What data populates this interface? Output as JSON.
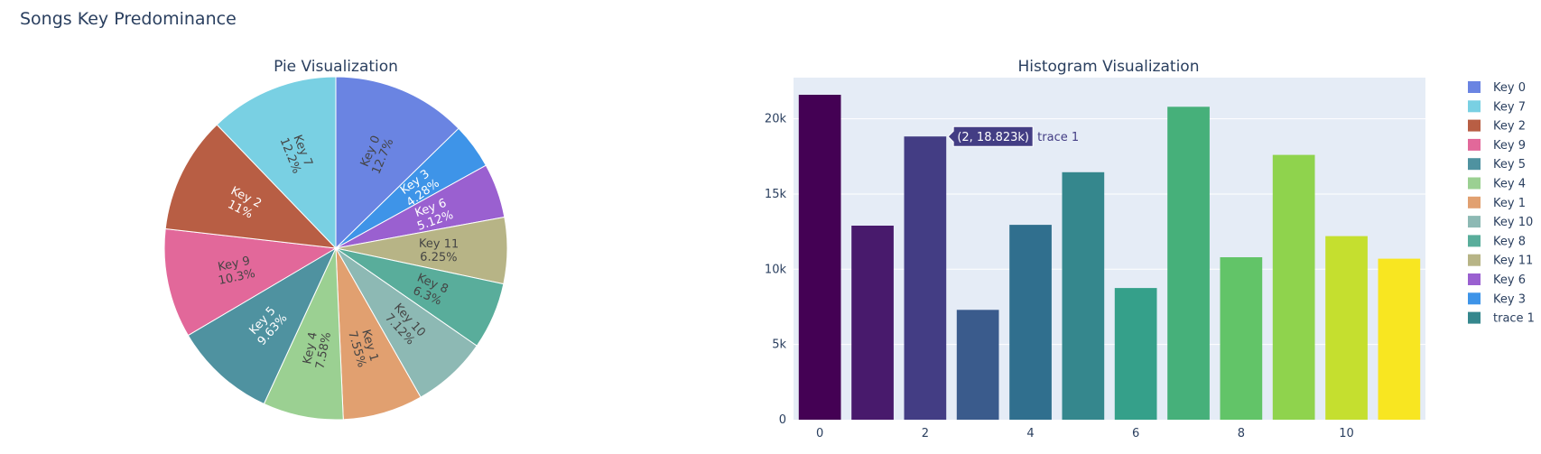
{
  "title": "Songs Key Predominance",
  "chart_data": [
    {
      "type": "pie",
      "title": "Pie Visualization",
      "labels": [
        "Key 0",
        "Key 3",
        "Key 6",
        "Key 11",
        "Key 8",
        "Key 10",
        "Key 1",
        "Key 4",
        "Key 5",
        "Key 9",
        "Key 2",
        "Key 7"
      ],
      "values": [
        12.7,
        4.28,
        5.12,
        6.25,
        6.3,
        7.12,
        7.55,
        7.58,
        9.63,
        10.3,
        11,
        12.2
      ],
      "percent_labels": [
        "12.7%",
        "4.28%",
        "5.12%",
        "6.25%",
        "6.3%",
        "7.12%",
        "7.55%",
        "7.58%",
        "9.63%",
        "10.3%",
        "11%",
        "12.2%"
      ],
      "colors": [
        "#6a84e2",
        "#3e94e8",
        "#9a60d0",
        "#b7b486",
        "#59ad9b",
        "#8db9b4",
        "#e1a070",
        "#9bd092",
        "#4f92a0",
        "#e2689a",
        "#b85e44",
        "#79d0e3"
      ],
      "text_colors": [
        "#444444",
        "#ffffff",
        "#ffffff",
        "#444444",
        "#444444",
        "#444444",
        "#444444",
        "#444444",
        "#ffffff",
        "#444444",
        "#ffffff",
        "#444444"
      ],
      "direction": "clockwise",
      "start": "top"
    },
    {
      "type": "bar",
      "title": "Histogram Visualization",
      "x": [
        0,
        1,
        2,
        3,
        4,
        5,
        6,
        7,
        8,
        9,
        10,
        11
      ],
      "values": [
        21600,
        12900,
        18823,
        7300,
        12950,
        16450,
        8750,
        20800,
        10800,
        17600,
        12200,
        10700
      ],
      "colors": [
        "#440154",
        "#481a6c",
        "#433d84",
        "#3a5b8c",
        "#306f8e",
        "#35878d",
        "#35a08a",
        "#46b07a",
        "#62c468",
        "#8fd34d",
        "#c5df2f",
        "#f8e621"
      ],
      "x_ticks": [
        0,
        2,
        4,
        6,
        8,
        10
      ],
      "y_ticks": [
        0,
        5000,
        10000,
        15000,
        20000
      ],
      "y_tick_labels": [
        "0",
        "5k",
        "10k",
        "15k",
        "20k"
      ],
      "ylim": [
        0,
        22737
      ],
      "xlim": [
        -0.5,
        11.5
      ],
      "grid": true,
      "hover": {
        "index": 2,
        "label": "(2, 18.823k)",
        "name": "trace 1",
        "color": "#433d84"
      }
    }
  ],
  "legend": {
    "placement": "right",
    "items": [
      {
        "label": "Key 0",
        "color": "#6a84e2"
      },
      {
        "label": "Key 7",
        "color": "#79d0e3"
      },
      {
        "label": "Key 2",
        "color": "#b85e44"
      },
      {
        "label": "Key 9",
        "color": "#e2689a"
      },
      {
        "label": "Key 5",
        "color": "#4f92a0"
      },
      {
        "label": "Key 4",
        "color": "#9bd092"
      },
      {
        "label": "Key 1",
        "color": "#e1a070"
      },
      {
        "label": "Key 10",
        "color": "#8db9b4"
      },
      {
        "label": "Key 8",
        "color": "#59ad9b"
      },
      {
        "label": "Key 11",
        "color": "#b7b486"
      },
      {
        "label": "Key 6",
        "color": "#9a60d0"
      },
      {
        "label": "Key 3",
        "color": "#3e94e8"
      },
      {
        "label": "trace 1",
        "color": "#35878d"
      }
    ]
  }
}
